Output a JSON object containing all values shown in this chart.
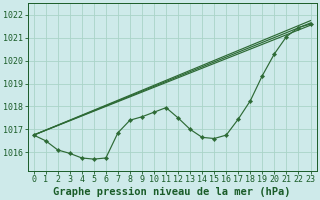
{
  "xlabel": "Graphe pression niveau de la mer (hPa)",
  "ylim": [
    1015.2,
    1022.5
  ],
  "xlim": [
    -0.5,
    23.5
  ],
  "yticks": [
    1016,
    1017,
    1018,
    1019,
    1020,
    1021,
    1022
  ],
  "xticks": [
    0,
    1,
    2,
    3,
    4,
    5,
    6,
    7,
    8,
    9,
    10,
    11,
    12,
    13,
    14,
    15,
    16,
    17,
    18,
    19,
    20,
    21,
    22,
    23
  ],
  "bg_color": "#ceeaea",
  "grid_color": "#aad4c8",
  "line_color": "#2d6a35",
  "marker_color": "#2d6a35",
  "straight_lines": [
    [
      [
        0,
        23
      ],
      [
        1016.75,
        1021.55
      ]
    ],
    [
      [
        0,
        23
      ],
      [
        1016.75,
        1021.65
      ]
    ],
    [
      [
        0,
        23
      ],
      [
        1016.75,
        1021.75
      ]
    ]
  ],
  "zigzag": [
    1016.75,
    1016.5,
    1016.1,
    1015.95,
    1015.75,
    1015.7,
    1015.75,
    1016.85,
    1017.4,
    1017.55,
    1017.75,
    1017.95,
    1017.5,
    1017.0,
    1016.65,
    1016.6,
    1016.75,
    1017.45,
    1018.25,
    1019.35,
    1020.3,
    1021.05,
    1021.45,
    1021.6
  ],
  "title_fontsize": 7.5,
  "tick_fontsize": 6.0,
  "label_color": "#1a5c28"
}
